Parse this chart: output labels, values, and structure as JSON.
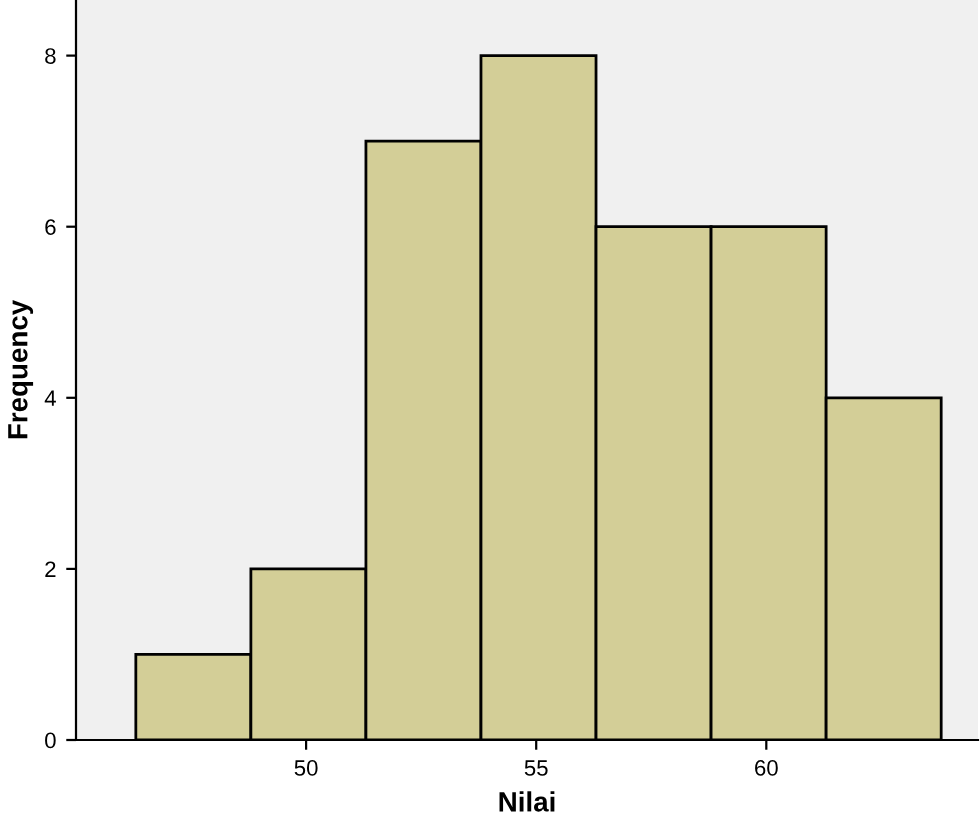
{
  "chart_data": {
    "type": "histogram",
    "xlabel": "Nilai",
    "ylabel": "Frequency",
    "bins": [
      46.3,
      48.8,
      51.3,
      53.8,
      56.3,
      58.8,
      61.3,
      63.8
    ],
    "values": [
      1,
      2,
      7,
      8,
      6,
      6,
      4
    ],
    "color": "#d3ce97",
    "xlim": [
      45.0,
      64.6
    ],
    "ylim": [
      0,
      8.65
    ],
    "xticks": [
      50,
      55,
      60
    ],
    "yticks": [
      0,
      2,
      4,
      6,
      8
    ],
    "grid": false
  }
}
